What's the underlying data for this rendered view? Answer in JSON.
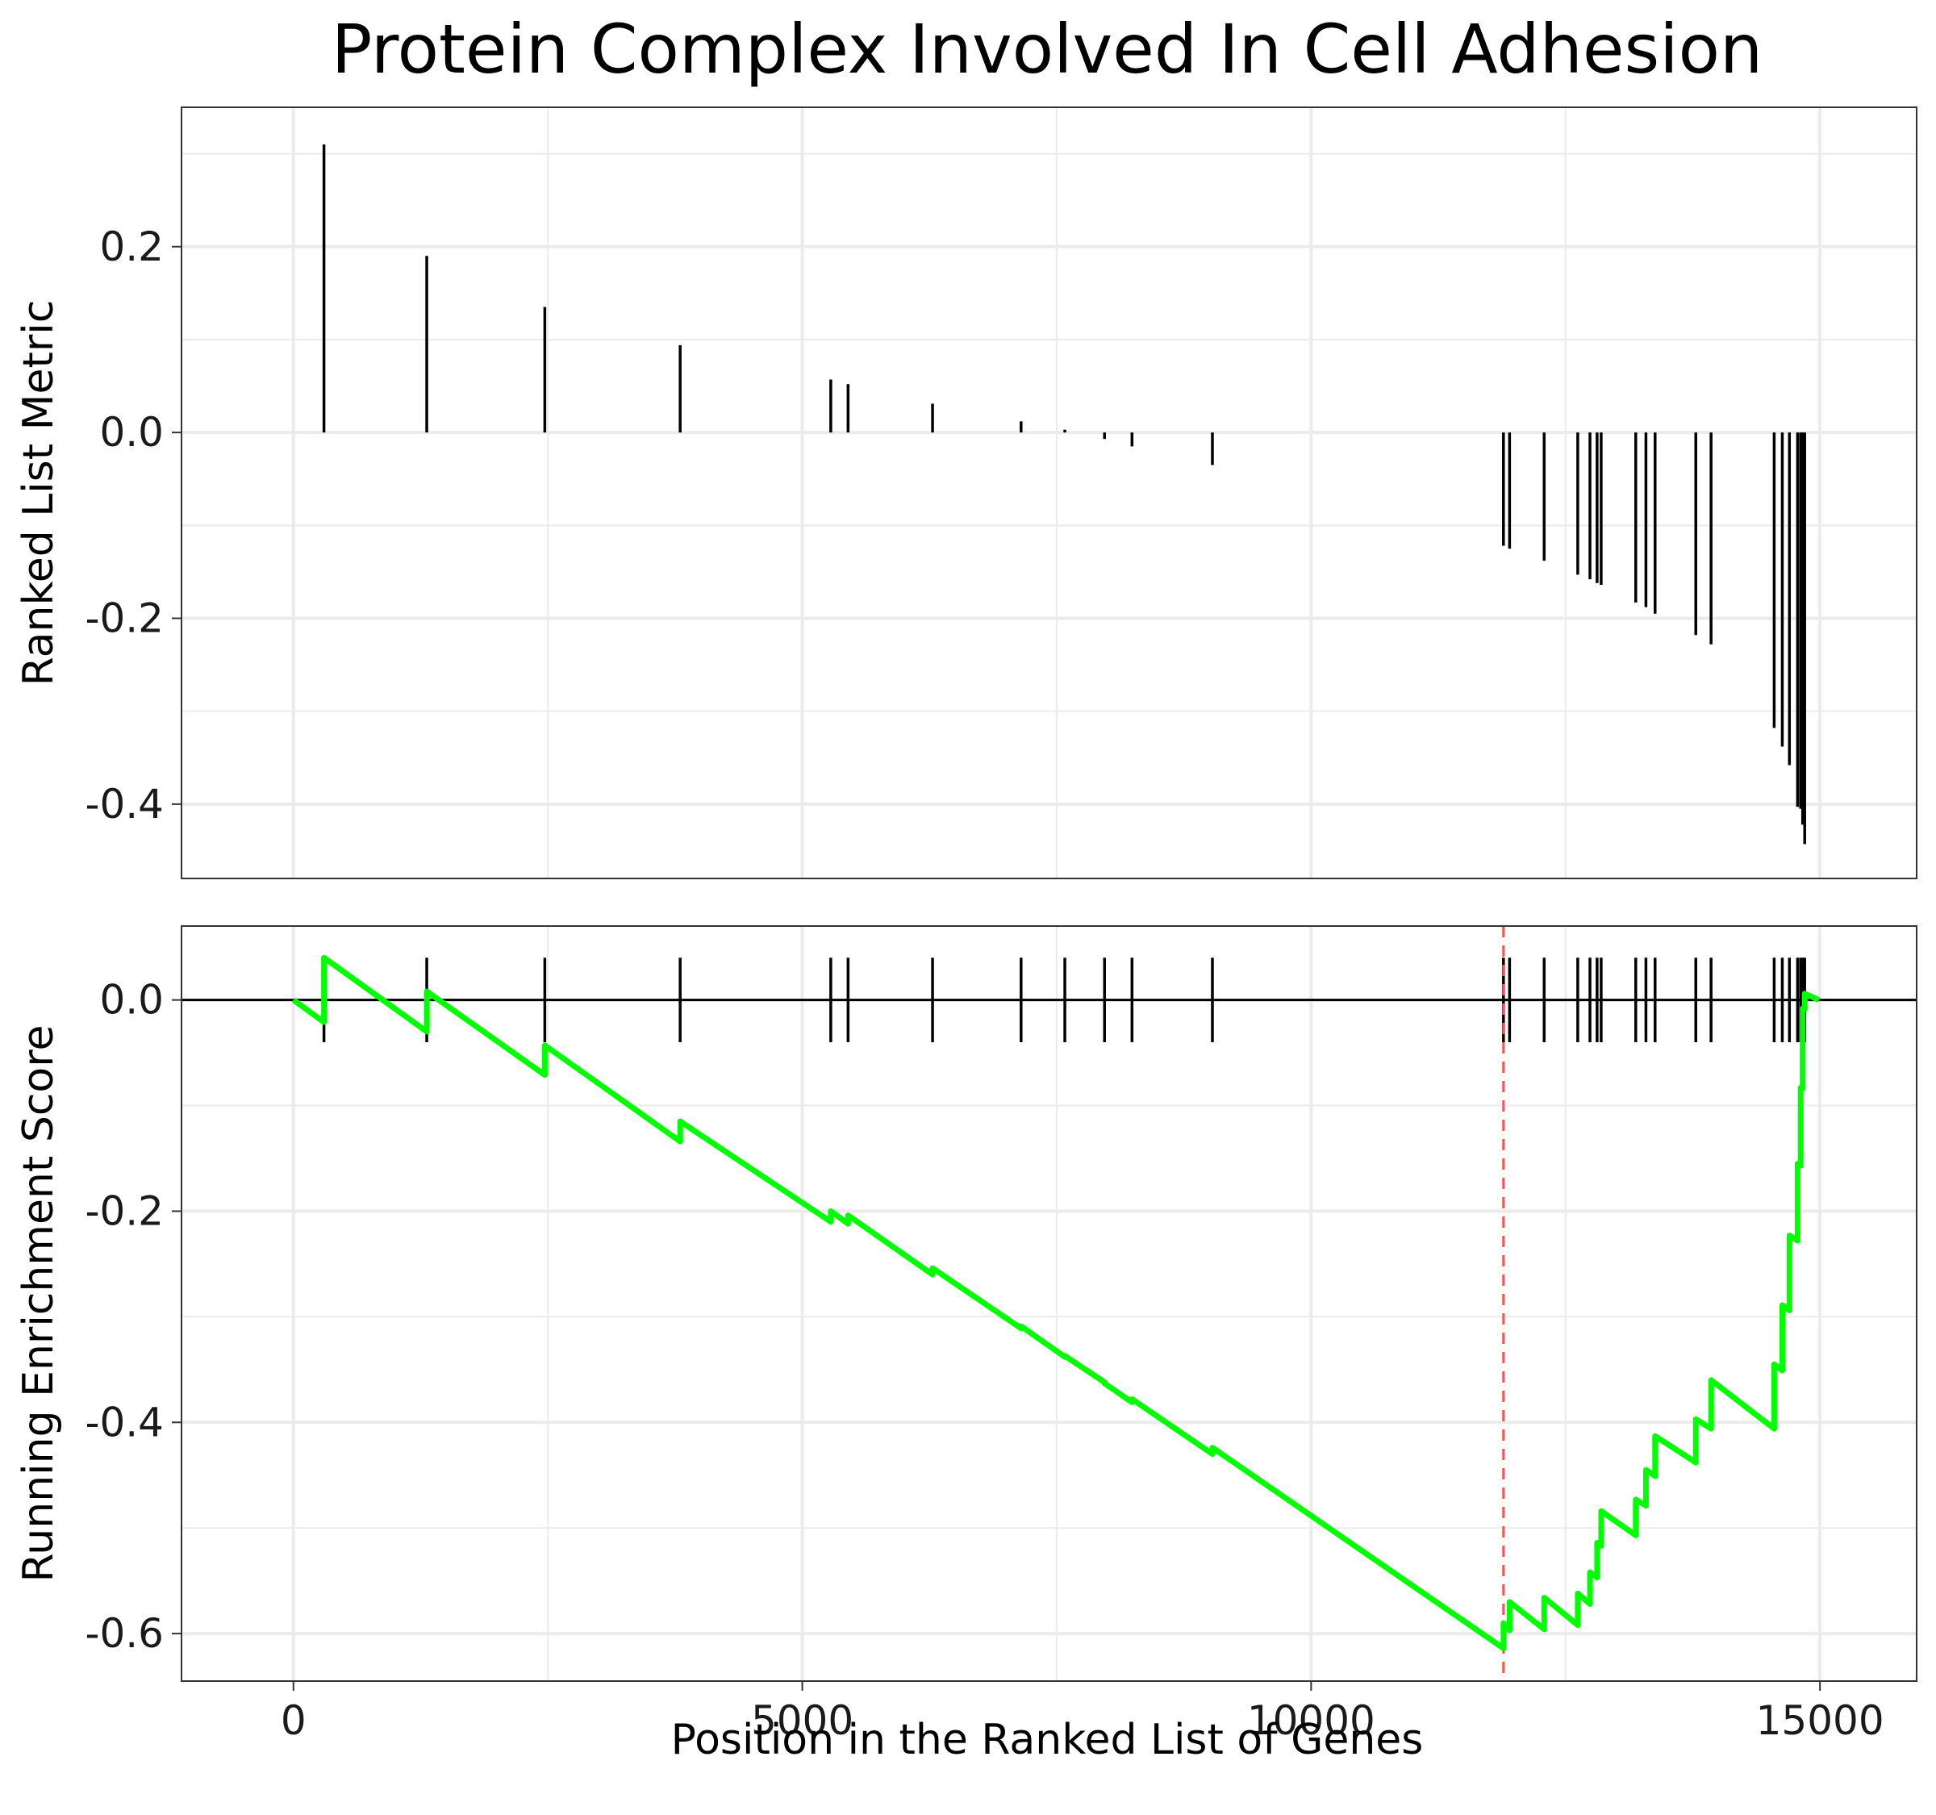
{
  "chart_data": {
    "type": "line",
    "title": "Protein Complex Involved In Cell Adhesion",
    "xlabel": "Position in the Ranked List of Genes",
    "xlim": [
      -1100,
      15950
    ],
    "x_ticks": [
      0,
      5000,
      10000,
      15000
    ],
    "x_tick_labels": [
      "0",
      "5000",
      "10000",
      "15000"
    ],
    "grid": true,
    "colors": {
      "es_line": "#00ff00",
      "bars": "#000000",
      "peak_line": "#f8545c",
      "grid": "#ebebeb",
      "zero_line": "#000000"
    },
    "hit_positions": [
      300,
      1310,
      2470,
      3800,
      5280,
      5450,
      6280,
      7150,
      7580,
      7970,
      8240,
      9030,
      11890,
      11950,
      12290,
      12620,
      12740,
      12810,
      12850,
      13190,
      13290,
      13380,
      13780,
      13930,
      14550,
      14630,
      14700,
      14780,
      14810,
      14830,
      14850
    ],
    "ranked_metric": {
      "ylabel": "Ranked List Metric",
      "ylim": [
        -0.48,
        0.35
      ],
      "y_ticks": [
        0.2,
        0.0,
        -0.2,
        -0.4
      ],
      "y_tick_labels": [
        "0.2",
        "0.0",
        "-0.2",
        "-0.4"
      ],
      "values": [
        0.31,
        0.19,
        0.135,
        0.094,
        0.057,
        0.052,
        0.031,
        0.012,
        0.003,
        -0.007,
        -0.015,
        -0.035,
        -0.122,
        -0.125,
        -0.138,
        -0.153,
        -0.158,
        -0.162,
        -0.164,
        -0.183,
        -0.188,
        -0.195,
        -0.218,
        -0.228,
        -0.318,
        -0.338,
        -0.358,
        -0.403,
        -0.405,
        -0.422,
        -0.443
      ]
    },
    "running_es": {
      "ylabel": "Running Enrichment Score",
      "ylim": [
        -0.645,
        0.07
      ],
      "y_ticks": [
        0.0,
        -0.2,
        -0.4,
        -0.6
      ],
      "y_tick_labels": [
        "0.0",
        "-0.2",
        "-0.4",
        "-0.6"
      ],
      "peak_position": 11890,
      "x": [
        0,
        300,
        300,
        1310,
        1310,
        2470,
        2470,
        3800,
        3800,
        5280,
        5280,
        5450,
        5450,
        6280,
        6280,
        7150,
        7150,
        7580,
        7580,
        7970,
        7970,
        8240,
        8240,
        9030,
        9030,
        11890,
        11890,
        11950,
        11950,
        12290,
        12290,
        12620,
        12620,
        12740,
        12740,
        12810,
        12810,
        12850,
        12850,
        13190,
        13190,
        13290,
        13290,
        13380,
        13380,
        13780,
        13780,
        13930,
        13930,
        14550,
        14550,
        14630,
        14630,
        14700,
        14700,
        14780,
        14780,
        14810,
        14810,
        14830,
        14830,
        14850,
        14850,
        14990
      ],
      "y": [
        0.0,
        -0.021,
        0.04,
        -0.03,
        0.008,
        -0.071,
        -0.043,
        -0.134,
        -0.115,
        -0.21,
        -0.2,
        -0.212,
        -0.204,
        -0.26,
        -0.254,
        -0.311,
        -0.309,
        -0.338,
        -0.337,
        -0.362,
        -0.363,
        -0.381,
        -0.378,
        -0.43,
        -0.424,
        -0.614,
        -0.59,
        -0.597,
        -0.57,
        -0.596,
        -0.566,
        -0.592,
        -0.562,
        -0.572,
        -0.542,
        -0.547,
        -0.514,
        -0.517,
        -0.484,
        -0.507,
        -0.473,
        -0.479,
        -0.445,
        -0.451,
        -0.413,
        -0.438,
        -0.397,
        -0.406,
        -0.36,
        -0.406,
        -0.345,
        -0.351,
        -0.289,
        -0.294,
        -0.223,
        -0.228,
        -0.155,
        -0.157,
        -0.083,
        -0.084,
        -0.008,
        -0.009,
        0.006,
        0.0
      ]
    }
  }
}
